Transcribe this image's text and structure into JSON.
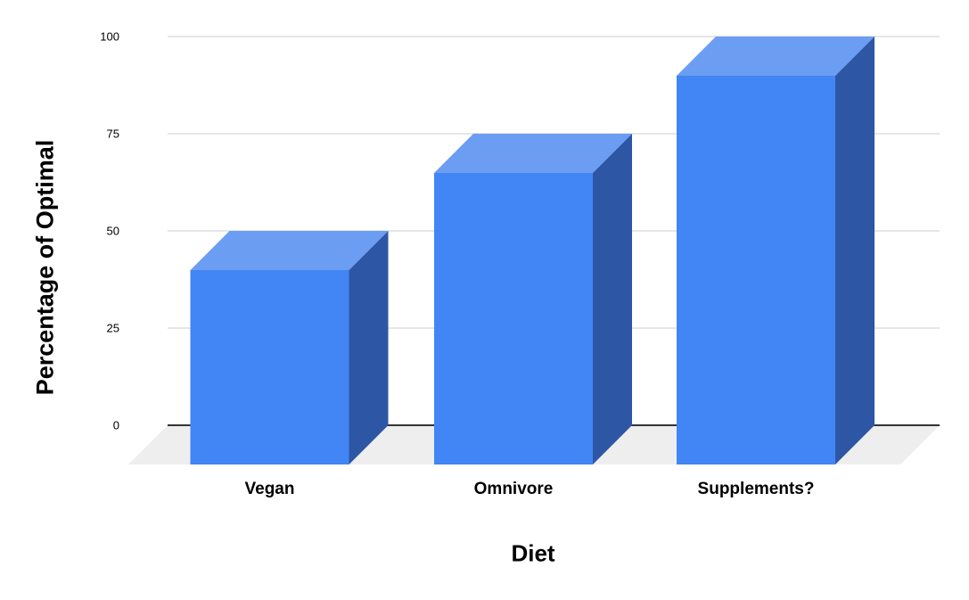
{
  "chart_data": {
    "type": "bar",
    "style": "3d-column",
    "title": "",
    "categories": [
      "Vegan",
      "Omnivore",
      "Supplements?"
    ],
    "values": [
      50,
      75,
      100
    ],
    "xlabel": "Diet",
    "ylabel": "Percentage of Optimal",
    "yticks": [
      0,
      25,
      50,
      75,
      100
    ],
    "ylim": [
      0,
      100
    ],
    "grid": true,
    "legend": "none",
    "colors": {
      "bar_front": "#4285f4",
      "bar_top": "#6b9df2",
      "bar_side": "#2d56a5",
      "floor": "#eeeeee",
      "gridline": "#cccccc",
      "zero_axis": "#333333",
      "label_text": "#000000",
      "background": "#ffffff"
    }
  }
}
